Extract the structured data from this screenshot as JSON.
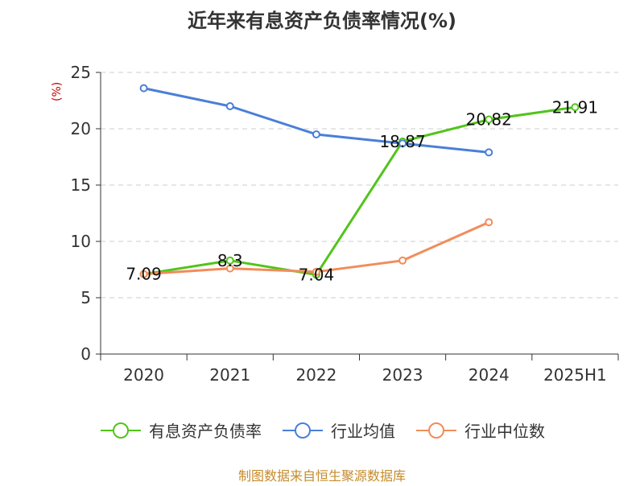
{
  "title": "近年来有息资产负债率情况(%)",
  "unit_label": "(%)",
  "source": "制图数据来自恒生聚源数据库",
  "colors": {
    "green": "#52c41a",
    "blue": "#4a7fd8",
    "orange": "#f28c5a",
    "axis": "#333333",
    "grid": "#cccccc",
    "source": "#c58b2c",
    "unit": "#cc0000"
  },
  "chart_data": {
    "type": "line",
    "title": "近年来有息资产负债率情况(%)",
    "ylabel": "(%)",
    "categories": [
      "2020",
      "2021",
      "2022",
      "2023",
      "2024",
      "2025H1"
    ],
    "ylim": [
      0,
      25
    ],
    "yticks": [
      0,
      5,
      10,
      15,
      20,
      25
    ],
    "grid": true,
    "legend_position": "bottom",
    "series": [
      {
        "name": "有息资产负债率",
        "values": [
          7.09,
          8.3,
          7.04,
          18.87,
          20.82,
          21.91
        ],
        "labels": [
          "7.09",
          "8.3",
          "7.04",
          "18.87",
          "20.82",
          "21.91"
        ]
      },
      {
        "name": "行业均值",
        "values": [
          23.6,
          22.0,
          19.5,
          18.7,
          17.9,
          null
        ]
      },
      {
        "name": "行业中位数",
        "values": [
          7.1,
          7.6,
          7.3,
          8.3,
          11.7,
          null
        ]
      }
    ]
  },
  "legend": [
    {
      "label": "有息资产负债率"
    },
    {
      "label": "行业均值"
    },
    {
      "label": "行业中位数"
    }
  ]
}
